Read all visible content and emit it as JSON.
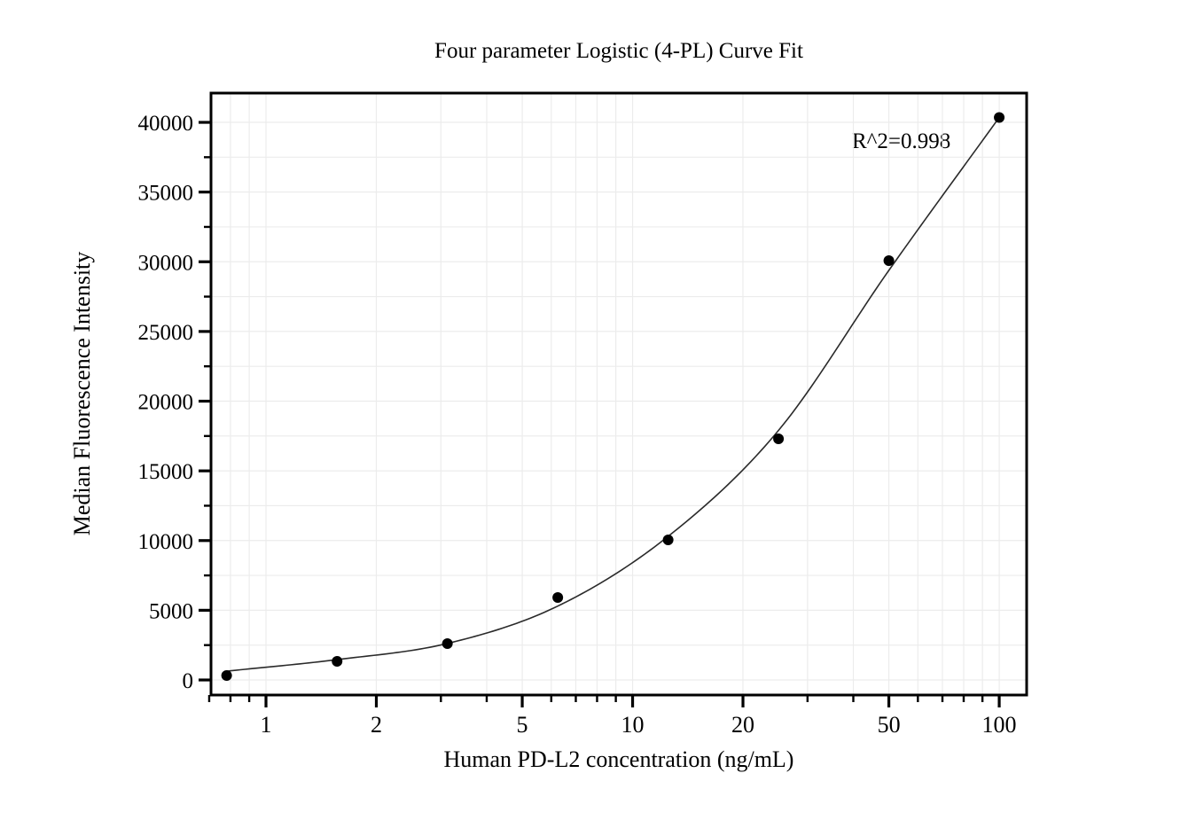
{
  "chart_data": {
    "type": "scatter",
    "title": "Four parameter Logistic (4-PL) Curve Fit",
    "xlabel": "Human PD-L2 concentration (ng/mL)",
    "ylabel": "Median Fluorescence Intensity",
    "annotation": "R^2=0.998",
    "x_scale": "log",
    "y_scale": "linear",
    "xlim": [
      0.708,
      118.8
    ],
    "ylim": [
      -1080,
      42100
    ],
    "grid": true,
    "legend": "none",
    "x_major_ticks": [
      1,
      2,
      5,
      10,
      20,
      50,
      100
    ],
    "x_major_labels": [
      "1",
      "2",
      "5",
      "10",
      "20",
      "50",
      "100"
    ],
    "x_minor_ticks": [
      0.7,
      0.8,
      0.9,
      3,
      4,
      6,
      7,
      8,
      9,
      30,
      40,
      60,
      70,
      80,
      90
    ],
    "y_major_ticks": [
      0,
      5000,
      10000,
      15000,
      20000,
      25000,
      30000,
      35000,
      40000
    ],
    "y_major_labels": [
      "0",
      "5000",
      "10000",
      "15000",
      "20000",
      "25000",
      "30000",
      "35000",
      "40000"
    ],
    "y_minor_ticks": [
      2500,
      7500,
      12500,
      17500,
      22500,
      27500,
      32500,
      37500
    ],
    "points": [
      {
        "x": 0.781,
        "y": 320
      },
      {
        "x": 1.563,
        "y": 1340
      },
      {
        "x": 3.125,
        "y": 2610
      },
      {
        "x": 6.25,
        "y": 5915
      },
      {
        "x": 12.5,
        "y": 10050
      },
      {
        "x": 25,
        "y": 17300
      },
      {
        "x": 50,
        "y": 30080
      },
      {
        "x": 100,
        "y": 40350
      }
    ],
    "fit_curve_anchors": [
      {
        "x": 0.781,
        "y": 630
      },
      {
        "x": 1.563,
        "y": 1460
      },
      {
        "x": 3.125,
        "y": 2620
      },
      {
        "x": 6.25,
        "y": 5300
      },
      {
        "x": 12.5,
        "y": 10300
      },
      {
        "x": 25,
        "y": 17900
      },
      {
        "x": 50,
        "y": 29380
      },
      {
        "x": 100,
        "y": 40350
      }
    ],
    "colors": {
      "background": "#ffffff",
      "axis": "#000000",
      "text": "#000000",
      "grid": "#ececec",
      "curve": "#2a2a2a",
      "marker": "#000000"
    },
    "marker_radius": 6
  }
}
